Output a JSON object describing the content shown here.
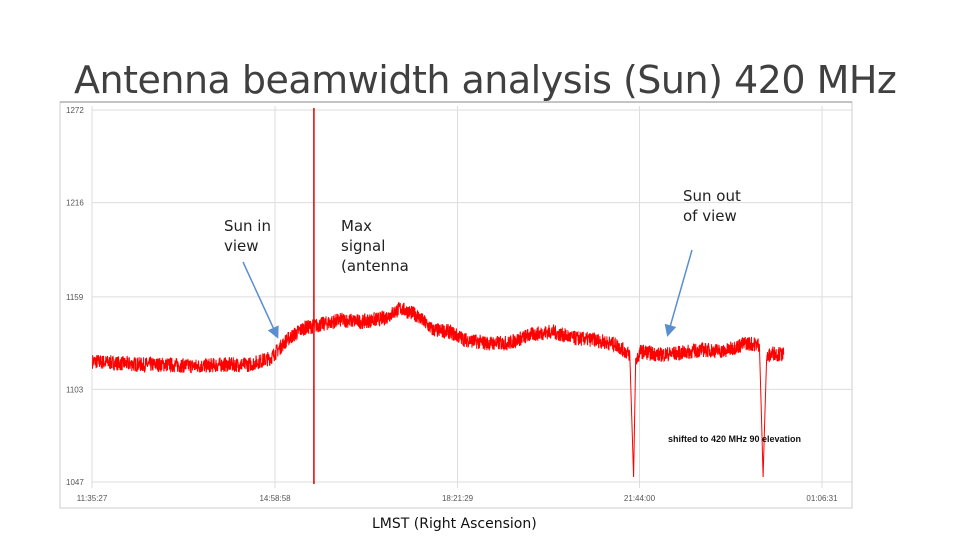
{
  "slide": {
    "title": "Antenna beamwidth analysis (Sun) 420 MHz"
  },
  "annotations": {
    "sun_in_view": [
      "Sun in",
      "view"
    ],
    "max_signal": [
      "Max",
      "signal",
      "(antenna"
    ],
    "sun_out_of_view": [
      "Sun out",
      "of view"
    ]
  },
  "colors": {
    "signal": "#ff0000",
    "marker_line": "#e00000",
    "arrow": "#5a8fcf",
    "grid": "#dddddd"
  },
  "chart_data": {
    "type": "line",
    "title": "",
    "xlabel": "LMST (Right Ascension)",
    "ylabel": "",
    "grid": true,
    "note": "shifted to 420 MHz 90 elevation",
    "y_ticks": [
      "1272",
      "1216",
      "1159",
      "1103",
      "1047"
    ],
    "ylim": [
      1047,
      1272
    ],
    "x_ticks": [
      "11:35:27",
      "14:58:58",
      "18:21:29",
      "21:44:00",
      "01:06:31"
    ],
    "x_hours": [
      11.59,
      14.98,
      18.36,
      21.73,
      25.11
    ],
    "vertical_marker_hour": 15.7,
    "series": [
      {
        "x": [
          11.6,
          12.0,
          12.5,
          13.0,
          13.5,
          14.0,
          14.5,
          14.9,
          15.2,
          15.5,
          15.8,
          16.2,
          16.6,
          17.0,
          17.3,
          17.6,
          17.9,
          18.2,
          18.5,
          18.9,
          19.3,
          19.7,
          20.1,
          20.5,
          20.9,
          21.3,
          21.55,
          21.62,
          21.66,
          21.75,
          22.1,
          22.5,
          22.9,
          23.3,
          23.7,
          23.95,
          24.02,
          24.08,
          24.2,
          24.4
        ],
        "y": [
          1120,
          1119,
          1118,
          1118,
          1117,
          1118,
          1118,
          1122,
          1133,
          1140,
          1142,
          1145,
          1144,
          1146,
          1152,
          1148,
          1139,
          1138,
          1133,
          1131,
          1131,
          1136,
          1138,
          1134,
          1133,
          1130,
          1124,
          1050,
          1120,
          1126,
          1124,
          1125,
          1127,
          1126,
          1131,
          1130,
          1050,
          1122,
          1125,
          1124
        ]
      }
    ]
  }
}
